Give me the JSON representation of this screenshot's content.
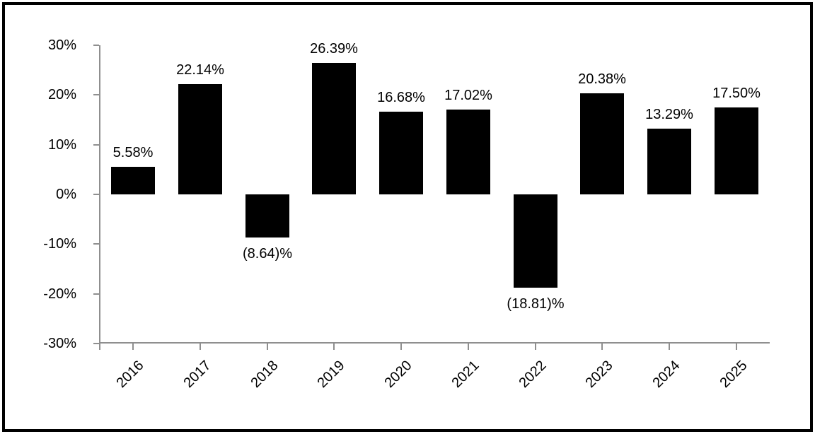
{
  "chart_data": {
    "type": "bar",
    "title": "",
    "xlabel": "",
    "ylabel": "",
    "categories": [
      "2016",
      "2017",
      "2018",
      "2019",
      "2020",
      "2021",
      "2022",
      "2023",
      "2024",
      "2025"
    ],
    "values": [
      5.58,
      22.14,
      -8.64,
      26.39,
      16.68,
      17.02,
      -18.81,
      20.38,
      13.29,
      17.5
    ],
    "value_labels": [
      "5.58%",
      "22.14%",
      "(8.64)%",
      "26.39%",
      "16.68%",
      "17.02%",
      "(18.81)%",
      "20.38%",
      "13.29%",
      "17.50%"
    ],
    "ylim": [
      -30,
      30
    ],
    "ytick_step": 10,
    "ytick_labels": [
      "30%",
      "20%",
      "10%",
      "0%",
      "-10%",
      "-20%",
      "-30%"
    ],
    "ytick_values": [
      30,
      20,
      10,
      0,
      -10,
      -20,
      -30
    ],
    "grid": "off",
    "legend": "none",
    "bar_color": "#000000",
    "axis_color": "#8f8f8f",
    "text_color": "#000000",
    "background_color": "#ffffff",
    "border_color": "#000000"
  }
}
